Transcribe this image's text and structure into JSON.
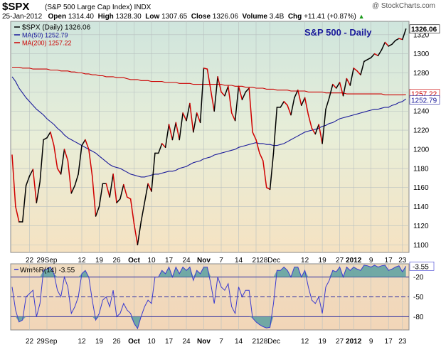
{
  "header": {
    "symbol": "$SPX",
    "description": "(S&P 500 Large Cap Index) INDX",
    "credit": "@ StockCharts.com",
    "date": "25-Jan-2012",
    "open_label": "Open",
    "open": "1314.40",
    "high_label": "High",
    "high": "1328.30",
    "low_label": "Low",
    "low": "1307.65",
    "close_label": "Close",
    "close": "1326.06",
    "volume_label": "Volume",
    "volume": "3.4B",
    "chg_label": "Chg",
    "chg": "+11.41 (+0.87%)",
    "chg_arrow": "▲"
  },
  "colors": {
    "price_up": "#000000",
    "price_down": "#d00000",
    "ma50": "#1a1a9a",
    "ma200": "#cc0000",
    "wm_line": "#3a3ad0",
    "wm_fill": "#5aa0a0",
    "grid": "#b8c0c0"
  },
  "chart_data": [
    {
      "type": "line",
      "title": "S&P 500 - Daily",
      "legend": [
        {
          "key": "price",
          "label": "$SPX (Daily) 1326.06"
        },
        {
          "key": "ma50",
          "label": "MA(50) 1252.79"
        },
        {
          "key": "ma200",
          "label": "MA(200) 1257.22"
        }
      ],
      "legend_position": "top-left",
      "ylim": [
        1092,
        1334
      ],
      "y_ticks": [
        1100,
        1120,
        1140,
        1160,
        1180,
        1200,
        1220,
        1240,
        1260,
        1280,
        1300,
        1320
      ],
      "x_tick_labels": [
        "22",
        "29Sep",
        "12",
        "19",
        "26",
        "Oct",
        "10",
        "17",
        "24",
        "Nov",
        "7",
        "14",
        "21",
        "28Dec",
        "12",
        "19",
        "27",
        "2012",
        "9",
        "17",
        "23"
      ],
      "x_tick_index": [
        5,
        10,
        20,
        25,
        30,
        35,
        40,
        45,
        50,
        55,
        60,
        65,
        70,
        74,
        84,
        89,
        94,
        98,
        103,
        108,
        112
      ],
      "bold_x_labels": [
        "Oct",
        "Nov",
        "Dec",
        "2012"
      ],
      "grid": true,
      "last_value_labels": [
        "1326.06",
        "1257.22",
        "1252.79"
      ],
      "series": [
        {
          "key": "price",
          "values": [
            1194,
            1140,
            1124,
            1124,
            1162,
            1172,
            1179,
            1144,
            1166,
            1210,
            1212,
            1218,
            1204,
            1180,
            1174,
            1200,
            1188,
            1154,
            1162,
            1174,
            1204,
            1210,
            1200,
            1172,
            1130,
            1140,
            1164,
            1164,
            1150,
            1174,
            1144,
            1148,
            1163,
            1150,
            1148,
            1122,
            1100,
            1124,
            1144,
            1164,
            1156,
            1196,
            1196,
            1206,
            1202,
            1226,
            1210,
            1228,
            1210,
            1238,
            1230,
            1248,
            1218,
            1238,
            1228,
            1285,
            1284,
            1262,
            1240,
            1276,
            1260,
            1256,
            1266,
            1238,
            1230,
            1266,
            1252,
            1260,
            1264,
            1218,
            1210,
            1196,
            1188,
            1160,
            1158,
            1196,
            1244,
            1244,
            1250,
            1246,
            1236,
            1254,
            1262,
            1246,
            1254,
            1236,
            1222,
            1216,
            1226,
            1206,
            1242,
            1254,
            1268,
            1264,
            1270,
            1256,
            1274,
            1267,
            1285,
            1282,
            1278,
            1292,
            1294,
            1296,
            1300,
            1298,
            1304,
            1312,
            1308,
            1310,
            1314,
            1316,
            1315,
            1326
          ]
        },
        {
          "key": "ma50",
          "values": [
            1276,
            1271,
            1264,
            1259,
            1254,
            1250,
            1246,
            1242,
            1239,
            1236,
            1232,
            1229,
            1226,
            1222,
            1219,
            1215,
            1212,
            1210,
            1208,
            1206,
            1204,
            1202,
            1200,
            1198,
            1196,
            1193,
            1190,
            1187,
            1184,
            1182,
            1181,
            1180,
            1178,
            1176,
            1174,
            1173,
            1172,
            1171,
            1171,
            1172,
            1173,
            1174,
            1174,
            1175,
            1176,
            1177,
            1177,
            1178,
            1180,
            1181,
            1182,
            1184,
            1186,
            1187,
            1188,
            1190,
            1191,
            1192,
            1194,
            1195,
            1196,
            1197,
            1198,
            1199,
            1200,
            1202,
            1203,
            1204,
            1205,
            1206,
            1207,
            1206,
            1206,
            1205,
            1205,
            1204,
            1204,
            1205,
            1206,
            1208,
            1210,
            1212,
            1214,
            1216,
            1218,
            1219,
            1220,
            1221,
            1222,
            1224,
            1225,
            1227,
            1228,
            1230,
            1232,
            1233,
            1234,
            1235,
            1236,
            1237,
            1238,
            1239,
            1240,
            1241,
            1242,
            1242,
            1243,
            1244,
            1244,
            1246,
            1247,
            1249,
            1250,
            1252.79
          ]
        },
        {
          "key": "ma200",
          "values": [
            1286,
            1286,
            1286,
            1285,
            1285,
            1285,
            1284,
            1284,
            1284,
            1284,
            1284,
            1283,
            1283,
            1283,
            1282,
            1282,
            1282,
            1281,
            1281,
            1280,
            1280,
            1279,
            1279,
            1278,
            1278,
            1277,
            1277,
            1276,
            1276,
            1276,
            1275,
            1275,
            1275,
            1274,
            1273,
            1273,
            1273,
            1272,
            1272,
            1272,
            1271,
            1271,
            1271,
            1271,
            1270,
            1270,
            1270,
            1270,
            1269,
            1269,
            1269,
            1269,
            1268,
            1268,
            1268,
            1268,
            1268,
            1268,
            1268,
            1268,
            1268,
            1267,
            1267,
            1267,
            1266,
            1266,
            1266,
            1265,
            1265,
            1265,
            1264,
            1264,
            1264,
            1263,
            1263,
            1263,
            1262,
            1262,
            1262,
            1262,
            1261,
            1261,
            1261,
            1261,
            1261,
            1260,
            1260,
            1260,
            1260,
            1260,
            1259,
            1259,
            1259,
            1259,
            1259,
            1259,
            1258,
            1258,
            1258,
            1258,
            1258,
            1258,
            1258,
            1258,
            1258,
            1258,
            1258,
            1257,
            1257,
            1257,
            1257,
            1257,
            1257,
            1257.22
          ]
        }
      ]
    },
    {
      "type": "area",
      "legend": [
        {
          "key": "wm",
          "label": "Wm%R(14) -3.55"
        }
      ],
      "legend_position": "top-left",
      "ylim": [
        -100,
        0
      ],
      "y_ticks": [
        -20,
        -50,
        -80
      ],
      "y_tick_labels": [
        "-20",
        "-50",
        "-80"
      ],
      "reference_lines": [
        -20,
        -50,
        -80
      ],
      "last_value_label": "-3.55",
      "x_tick_labels": [
        "22",
        "29Sep",
        "12",
        "19",
        "26",
        "Oct",
        "10",
        "17",
        "24",
        "Nov",
        "7",
        "14",
        "21",
        "28Dec",
        "12",
        "19",
        "27",
        "2012",
        "9",
        "17",
        "23"
      ],
      "x_tick_index": [
        5,
        10,
        20,
        25,
        30,
        35,
        40,
        45,
        50,
        55,
        60,
        65,
        70,
        74,
        84,
        89,
        94,
        98,
        103,
        108,
        112
      ],
      "series": [
        {
          "key": "wm",
          "values": [
            -35,
            -70,
            -88,
            -85,
            -50,
            -45,
            -40,
            -80,
            -60,
            -10,
            -8,
            -5,
            -15,
            -40,
            -50,
            -20,
            -35,
            -75,
            -65,
            -50,
            -15,
            -10,
            -20,
            -55,
            -85,
            -75,
            -55,
            -50,
            -65,
            -40,
            -80,
            -75,
            -60,
            -70,
            -75,
            -90,
            -98,
            -80,
            -65,
            -55,
            -60,
            -20,
            -20,
            -10,
            -15,
            -5,
            -20,
            -5,
            -15,
            -5,
            -10,
            -5,
            -25,
            -10,
            -15,
            -5,
            -5,
            -30,
            -60,
            -20,
            -35,
            -40,
            -30,
            -65,
            -75,
            -35,
            -50,
            -40,
            -40,
            -82,
            -88,
            -92,
            -95,
            -97,
            -96,
            -60,
            -10,
            -10,
            -5,
            -10,
            -20,
            -5,
            -5,
            -20,
            -10,
            -35,
            -55,
            -60,
            -50,
            -75,
            -35,
            -25,
            -10,
            -12,
            -5,
            -20,
            -5,
            -10,
            -5,
            -8,
            -10,
            -2,
            -3,
            -5,
            -2,
            -5,
            -3,
            -2,
            -10,
            -8,
            -5,
            -3,
            -12,
            -3.55
          ]
        }
      ]
    }
  ]
}
